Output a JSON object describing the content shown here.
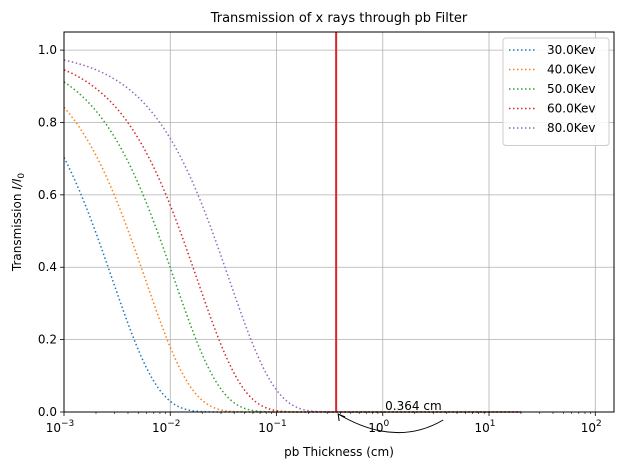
{
  "chart_data": {
    "type": "line",
    "title": "Transmission of x rays through pb Filter",
    "xlabel": "pb Thickness (cm)",
    "ylabel_main": "Transmission ",
    "ylabel_italic": "I/I",
    "ylabel_sub": "0",
    "x_scale": "log",
    "xlim": [
      0.001,
      150
    ],
    "ylim": [
      0,
      1.05
    ],
    "grid": true,
    "legend_position": "top-right",
    "x_ticks": [
      {
        "value": 0.001,
        "base": "10",
        "exp": "−3"
      },
      {
        "value": 0.01,
        "base": "10",
        "exp": "−2"
      },
      {
        "value": 0.1,
        "base": "10",
        "exp": "−1"
      },
      {
        "value": 1,
        "base": "10",
        "exp": "0"
      },
      {
        "value": 10,
        "base": "10",
        "exp": "1"
      },
      {
        "value": 100,
        "base": "10",
        "exp": "2"
      }
    ],
    "y_ticks": [
      "0.0",
      "0.2",
      "0.4",
      "0.6",
      "0.8",
      "1.0"
    ],
    "x_range": [
      0.001,
      20
    ],
    "series": [
      {
        "name": "30.0Kev",
        "color": "#1f77b4",
        "mu": 352
      },
      {
        "name": "40.0Kev",
        "color": "#ff7f0e",
        "mu": 172
      },
      {
        "name": "50.0Kev",
        "color": "#2ca02c",
        "mu": 92
      },
      {
        "name": "60.0Kev",
        "color": "#d62728",
        "mu": 56
      },
      {
        "name": "80.0Kev",
        "color": "#9467bd",
        "mu": 28
      }
    ],
    "vline": {
      "x": 0.364,
      "color": "#d62728"
    },
    "annotation": {
      "text": "0.364 cm",
      "text_x": 1.2,
      "text_y": 0.0,
      "arrow_to_x": 0.364,
      "arrow_to_y": 0.0
    }
  }
}
